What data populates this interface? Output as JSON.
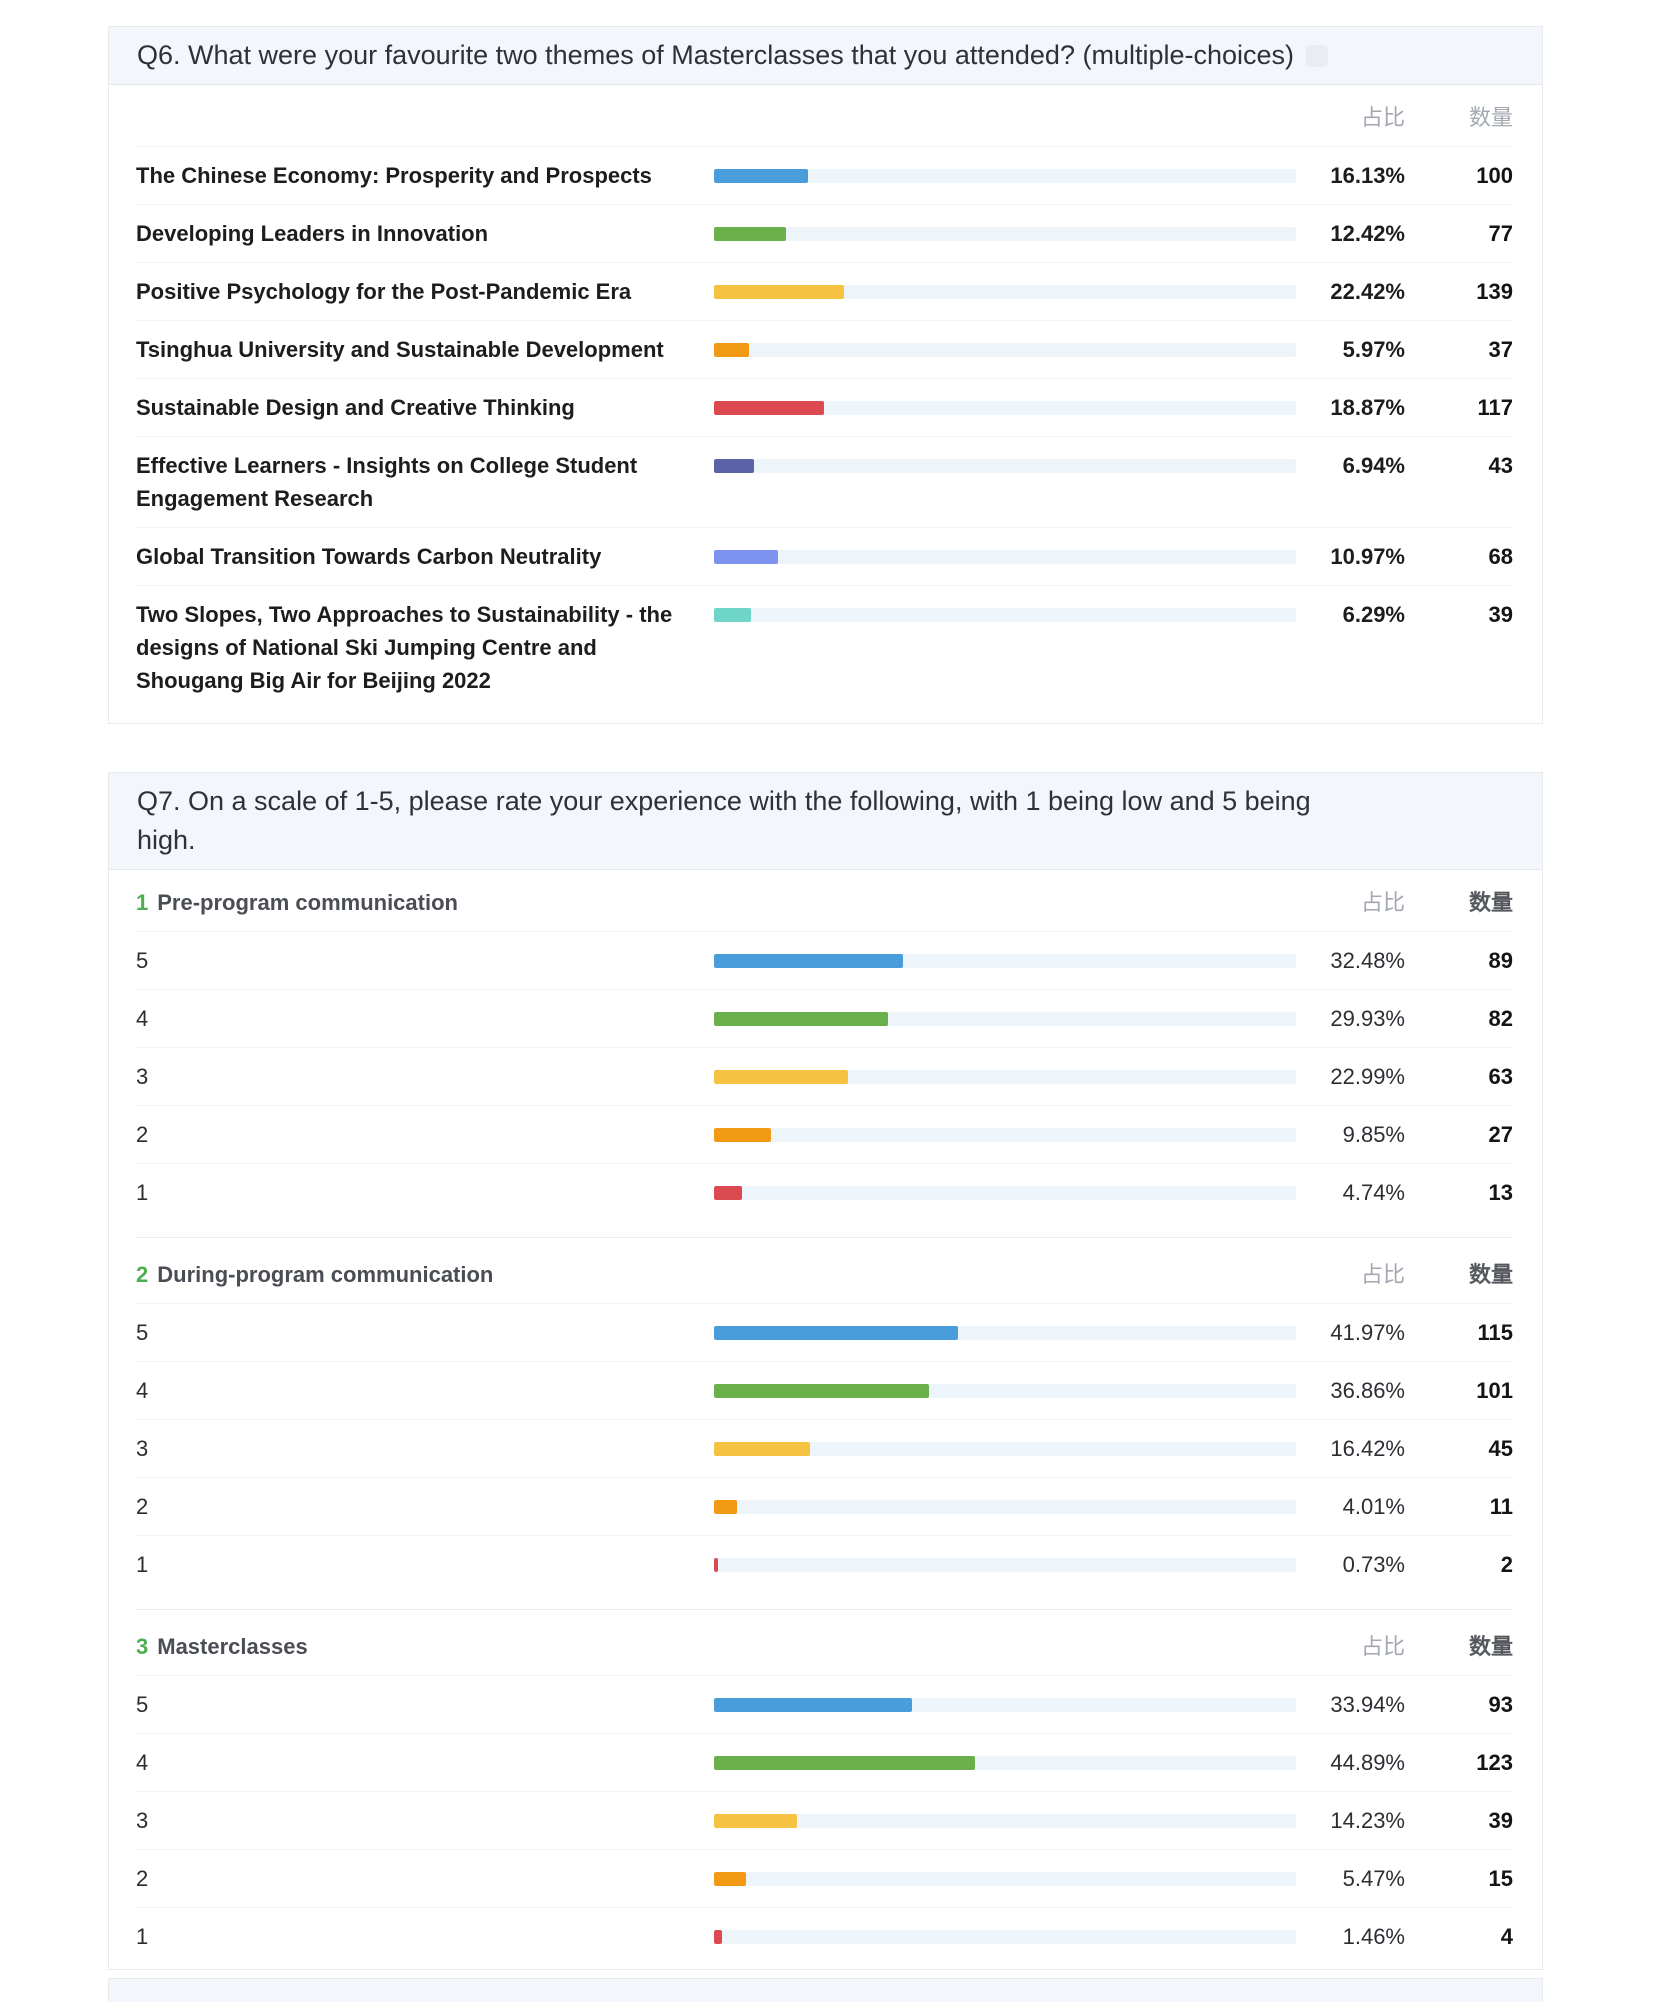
{
  "columns": {
    "share": "占比",
    "count": "数量"
  },
  "colors": {
    "bar_blue": "#4A9DDB",
    "bar_green": "#6AB04A",
    "bar_yellow": "#F5C242",
    "bar_orange": "#F39A14",
    "bar_red": "#DC4A51",
    "bar_purple": "#5A63A8",
    "bar_periwinkle": "#7D92EF",
    "bar_teal": "#6FD5C9",
    "bar_track": "#EDF4FA",
    "accent_green": "#4CAF50",
    "header_band": "#F3F6FA"
  },
  "q6": {
    "title": "Q6. What were your favourite two themes of Masterclasses that you attended? (multiple-choices)",
    "rows": [
      {
        "label": "The Chinese Economy: Prosperity and Prospects",
        "pct": 16.13,
        "share": "16.13%",
        "count": "100",
        "color": "#4A9DDB"
      },
      {
        "label": "Developing Leaders in Innovation",
        "pct": 12.42,
        "share": "12.42%",
        "count": "77",
        "color": "#6AB04A"
      },
      {
        "label": "Positive Psychology for the Post-Pandemic Era",
        "pct": 22.42,
        "share": "22.42%",
        "count": "139",
        "color": "#F5C242"
      },
      {
        "label": "Tsinghua University and Sustainable Development",
        "pct": 5.97,
        "share": "5.97%",
        "count": "37",
        "color": "#F39A14"
      },
      {
        "label": "Sustainable Design and Creative Thinking",
        "pct": 18.87,
        "share": "18.87%",
        "count": "117",
        "color": "#DC4A51"
      },
      {
        "label": "Effective Learners - Insights on College Student Engagement Research",
        "pct": 6.94,
        "share": "6.94%",
        "count": "43",
        "color": "#5A63A8"
      },
      {
        "label": "Global Transition Towards Carbon Neutrality",
        "pct": 10.97,
        "share": "10.97%",
        "count": "68",
        "color": "#7D92EF"
      },
      {
        "label": "Two Slopes, Two Approaches to Sustainability - the designs of National Ski Jumping Centre and Shougang Big Air for Beijing 2022",
        "pct": 6.29,
        "share": "6.29%",
        "count": "39",
        "color": "#6FD5C9"
      }
    ]
  },
  "q7": {
    "title": "Q7. On a scale of 1-5, please rate your experience with the following, with 1 being low and 5 being high.",
    "sections": [
      {
        "num": "1",
        "name": "Pre-program communication",
        "rows": [
          {
            "label": "5",
            "pct": 32.48,
            "share": "32.48%",
            "count": "89",
            "color": "#4A9DDB"
          },
          {
            "label": "4",
            "pct": 29.93,
            "share": "29.93%",
            "count": "82",
            "color": "#6AB04A"
          },
          {
            "label": "3",
            "pct": 22.99,
            "share": "22.99%",
            "count": "63",
            "color": "#F5C242"
          },
          {
            "label": "2",
            "pct": 9.85,
            "share": "9.85%",
            "count": "27",
            "color": "#F39A14"
          },
          {
            "label": "1",
            "pct": 4.74,
            "share": "4.74%",
            "count": "13",
            "color": "#DC4A51"
          }
        ]
      },
      {
        "num": "2",
        "name": "During-program communication",
        "rows": [
          {
            "label": "5",
            "pct": 41.97,
            "share": "41.97%",
            "count": "115",
            "color": "#4A9DDB"
          },
          {
            "label": "4",
            "pct": 36.86,
            "share": "36.86%",
            "count": "101",
            "color": "#6AB04A"
          },
          {
            "label": "3",
            "pct": 16.42,
            "share": "16.42%",
            "count": "45",
            "color": "#F5C242"
          },
          {
            "label": "2",
            "pct": 4.01,
            "share": "4.01%",
            "count": "11",
            "color": "#F39A14"
          },
          {
            "label": "1",
            "pct": 0.73,
            "share": "0.73%",
            "count": "2",
            "color": "#DC4A51"
          }
        ]
      },
      {
        "num": "3",
        "name": "Masterclasses",
        "rows": [
          {
            "label": "5",
            "pct": 33.94,
            "share": "33.94%",
            "count": "93",
            "color": "#4A9DDB"
          },
          {
            "label": "4",
            "pct": 44.89,
            "share": "44.89%",
            "count": "123",
            "color": "#6AB04A"
          },
          {
            "label": "3",
            "pct": 14.23,
            "share": "14.23%",
            "count": "39",
            "color": "#F5C242"
          },
          {
            "label": "2",
            "pct": 5.47,
            "share": "5.47%",
            "count": "15",
            "color": "#F39A14"
          },
          {
            "label": "1",
            "pct": 1.46,
            "share": "1.46%",
            "count": "4",
            "color": "#DC4A51"
          }
        ]
      }
    ]
  }
}
